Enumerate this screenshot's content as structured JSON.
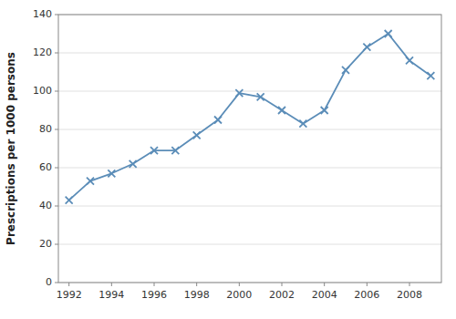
{
  "chart_data": {
    "type": "line",
    "ylabel": "Prescriptions per 1000 persons",
    "x": [
      1992,
      1993,
      1994,
      1995,
      1996,
      1997,
      1998,
      1999,
      2000,
      2001,
      2002,
      2003,
      2004,
      2005,
      2006,
      2007,
      2008,
      2009
    ],
    "values": [
      43,
      53,
      57,
      62,
      69,
      69,
      77,
      85,
      99,
      97,
      90,
      83,
      90,
      111,
      123,
      130,
      116,
      108
    ],
    "color": "#5B8DB8",
    "marker": "x",
    "xlim": [
      1991.5,
      2009.5
    ],
    "xticks": [
      1992,
      1994,
      1996,
      1998,
      2000,
      2002,
      2004,
      2006,
      2008
    ],
    "ylim": [
      0,
      140
    ],
    "yticks": [
      0,
      20,
      40,
      60,
      80,
      100,
      120,
      140
    ],
    "grid": true
  }
}
